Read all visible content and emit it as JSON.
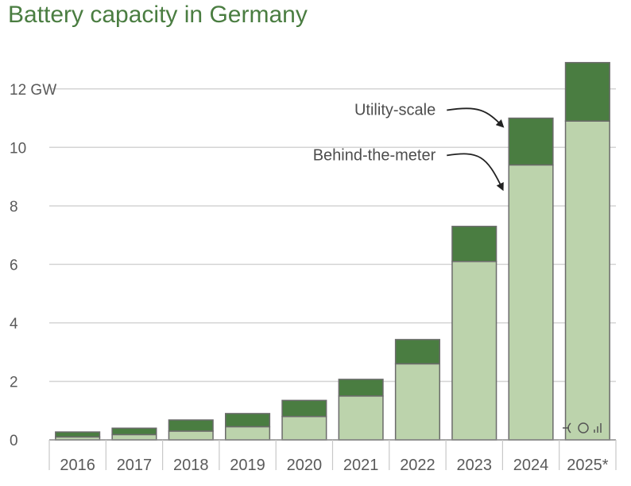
{
  "title": "Battery capacity in Germany",
  "chart_data": {
    "type": "bar",
    "stacked": true,
    "title": "Battery capacity in Germany",
    "categories": [
      "2016",
      "2017",
      "2018",
      "2019",
      "2020",
      "2021",
      "2022",
      "2023",
      "2024",
      "2025*"
    ],
    "series": [
      {
        "name": "Behind-the-meter",
        "color": "#bcd3ac",
        "values": [
          0.1,
          0.18,
          0.3,
          0.45,
          0.8,
          1.5,
          2.6,
          6.1,
          9.4,
          10.9
        ]
      },
      {
        "name": "Utility-scale",
        "color": "#4a7d41",
        "values": [
          0.17,
          0.22,
          0.38,
          0.45,
          0.55,
          0.57,
          0.83,
          1.2,
          1.6,
          2.0
        ]
      }
    ],
    "totals": [
      0.27,
      0.4,
      0.68,
      0.9,
      1.35,
      2.07,
      3.43,
      7.3,
      11.0,
      12.9
    ],
    "ylim": [
      0,
      13
    ],
    "yticks": [
      {
        "value": 0,
        "label": "0"
      },
      {
        "value": 2,
        "label": "2"
      },
      {
        "value": 4,
        "label": "4"
      },
      {
        "value": 6,
        "label": "6"
      },
      {
        "value": 8,
        "label": "8"
      },
      {
        "value": 10,
        "label": "10"
      },
      {
        "value": 12,
        "label": "12 GW"
      }
    ],
    "grid": true,
    "annotations": [
      {
        "text": "Utility-scale",
        "target_series": "Utility-scale",
        "target_category": "2024"
      },
      {
        "text": "Behind-the-meter",
        "target_series": "Behind-the-meter",
        "target_category": "2024"
      }
    ]
  }
}
